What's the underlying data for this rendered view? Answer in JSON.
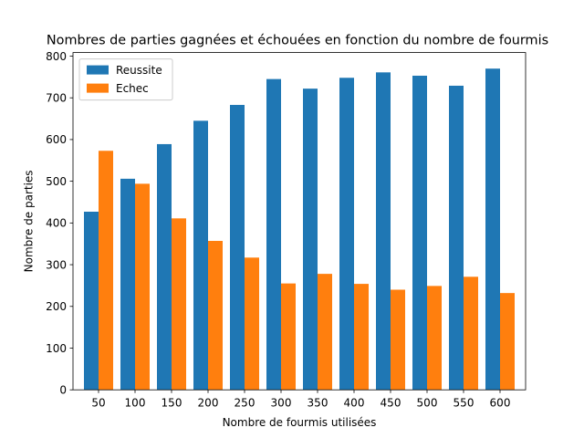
{
  "chart_data": {
    "type": "bar",
    "title": "Nombres de parties gagnées et échouées en fonction du nombre de fourmis",
    "xlabel": "Nombre de fourmis utilisées",
    "ylabel": "Nombre de parties",
    "categories": [
      "50",
      "100",
      "150",
      "200",
      "250",
      "300",
      "350",
      "400",
      "450",
      "500",
      "550",
      "600"
    ],
    "series": [
      {
        "name": "Reussite",
        "color": "#1f77b4",
        "values": [
          427,
          506,
          589,
          645,
          683,
          745,
          722,
          748,
          761,
          753,
          729,
          770
        ]
      },
      {
        "name": "Echec",
        "color": "#ff7f0e",
        "values": [
          573,
          494,
          411,
          357,
          317,
          255,
          278,
          254,
          240,
          249,
          271,
          232
        ]
      }
    ],
    "yticks": [
      0,
      100,
      200,
      300,
      400,
      500,
      600,
      700,
      800
    ],
    "ylim": [
      0,
      808.5
    ],
    "grid": false,
    "legend_position": "upper-left"
  }
}
